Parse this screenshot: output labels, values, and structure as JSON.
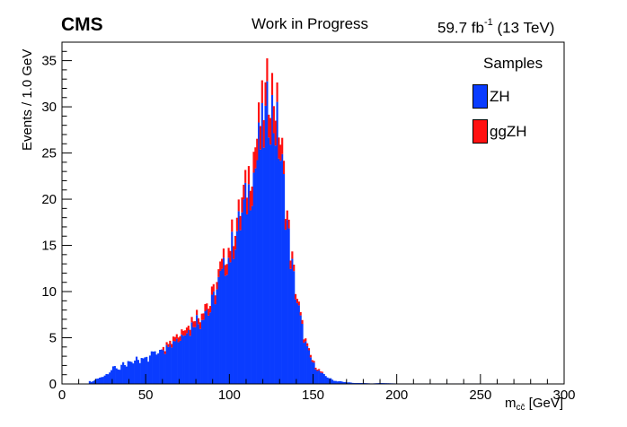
{
  "header": {
    "experiment": "CMS",
    "status": "Work in Progress",
    "lumi_prefix": "59.7 fb",
    "lumi_exp": "-1",
    "lumi_suffix": " (13 TeV)"
  },
  "colors": {
    "ZH": "#0a3cff",
    "ggZH": "#ff1111",
    "outline": "#333366"
  },
  "chart_data": {
    "type": "bar",
    "stacked": true,
    "histogram": true,
    "xlabel_main": "m",
    "xlabel_sub": "cc̄",
    "xlabel_unit": " [GeV]",
    "ylabel": "Events / 1.0 GeV",
    "xlim": [
      0,
      300
    ],
    "ylim": [
      0,
      37
    ],
    "bin_width": 1,
    "x_ticks": [
      "0",
      "50",
      "100",
      "150",
      "200",
      "250",
      "300"
    ],
    "y_ticks": [
      "0",
      "5",
      "10",
      "15",
      "20",
      "25",
      "30",
      "35"
    ],
    "legend_title": "Samples",
    "legend_position": "top-right",
    "grid": false,
    "series": [
      {
        "name": "ZH",
        "bins": [
          [
            16,
            0.3
          ],
          [
            18,
            0.2
          ],
          [
            20,
            0.5
          ],
          [
            22,
            0.6
          ],
          [
            24,
            0.8
          ],
          [
            26,
            1.0
          ],
          [
            28,
            1.3
          ],
          [
            30,
            1.6
          ],
          [
            32,
            1.9
          ],
          [
            34,
            1.5
          ],
          [
            36,
            2.2
          ],
          [
            38,
            1.7
          ],
          [
            40,
            2.5
          ],
          [
            42,
            2.0
          ],
          [
            44,
            3.0
          ],
          [
            46,
            2.2
          ],
          [
            48,
            3.0
          ],
          [
            50,
            3.3
          ],
          [
            52,
            2.5
          ],
          [
            54,
            3.8
          ],
          [
            56,
            3.0
          ],
          [
            58,
            3.8
          ],
          [
            60,
            4.2
          ],
          [
            62,
            3.5
          ],
          [
            64,
            5.0
          ],
          [
            66,
            4.3
          ],
          [
            68,
            5.2
          ],
          [
            70,
            4.6
          ],
          [
            72,
            5.6
          ],
          [
            74,
            6.2
          ],
          [
            76,
            5.5
          ],
          [
            78,
            6.6
          ],
          [
            80,
            7.2
          ],
          [
            82,
            6.4
          ],
          [
            84,
            7.7
          ],
          [
            86,
            8.3
          ],
          [
            88,
            7.5
          ],
          [
            90,
            9.0
          ],
          [
            92,
            9.8
          ],
          [
            94,
            11.2
          ],
          [
            96,
            11.8
          ],
          [
            98,
            13.4
          ],
          [
            100,
            13.8
          ],
          [
            102,
            15.0
          ],
          [
            104,
            16.4
          ],
          [
            106,
            17.0
          ],
          [
            108,
            18.6
          ],
          [
            110,
            19.6
          ],
          [
            112,
            21.2
          ],
          [
            114,
            22.5
          ],
          [
            116,
            24.0
          ],
          [
            118,
            25.8
          ],
          [
            120,
            27.0
          ],
          [
            122,
            28.4
          ],
          [
            124,
            30.5
          ],
          [
            126,
            29.0
          ],
          [
            128,
            27.8
          ],
          [
            130,
            25.5
          ],
          [
            132,
            22.0
          ],
          [
            134,
            18.4
          ],
          [
            136,
            14.5
          ],
          [
            138,
            11.8
          ],
          [
            140,
            9.4
          ],
          [
            142,
            7.4
          ],
          [
            144,
            5.4
          ],
          [
            146,
            4.0
          ],
          [
            148,
            3.0
          ],
          [
            150,
            2.2
          ],
          [
            152,
            1.7
          ],
          [
            154,
            1.3
          ],
          [
            156,
            1.0
          ],
          [
            158,
            0.8
          ],
          [
            160,
            0.6
          ],
          [
            162,
            0.4
          ],
          [
            164,
            0.3
          ],
          [
            166,
            0.3
          ],
          [
            168,
            0.2
          ],
          [
            170,
            0.2
          ],
          [
            172,
            0.15
          ],
          [
            174,
            0.1
          ],
          [
            176,
            0.1
          ],
          [
            180,
            0.1
          ],
          [
            185,
            0.05
          ],
          [
            190,
            0.1
          ],
          [
            200,
            0.05
          ],
          [
            210,
            0.05
          ],
          [
            220,
            0.05
          ],
          [
            240,
            0.05
          ],
          [
            260,
            0.05
          ]
        ]
      },
      {
        "name": "ggZH",
        "bins": [
          [
            60,
            0.3
          ],
          [
            70,
            0.5
          ],
          [
            80,
            0.6
          ],
          [
            90,
            0.8
          ],
          [
            96,
            1.0
          ],
          [
            100,
            1.2
          ],
          [
            106,
            1.4
          ],
          [
            110,
            1.6
          ],
          [
            114,
            2.0
          ],
          [
            116,
            2.2
          ],
          [
            118,
            2.5
          ],
          [
            120,
            2.6
          ],
          [
            122,
            2.8
          ],
          [
            124,
            2.9
          ],
          [
            126,
            2.7
          ],
          [
            128,
            2.4
          ],
          [
            130,
            2.0
          ],
          [
            132,
            1.6
          ],
          [
            134,
            1.2
          ],
          [
            136,
            0.9
          ],
          [
            138,
            0.7
          ],
          [
            140,
            0.5
          ],
          [
            142,
            0.4
          ],
          [
            146,
            0.3
          ],
          [
            150,
            0.2
          ],
          [
            156,
            0.1
          ]
        ]
      }
    ]
  }
}
